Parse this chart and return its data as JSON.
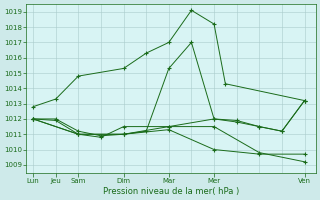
{
  "background_color": "#ceeaea",
  "plot_bg_color": "#d8f4f4",
  "grid_color": "#aacccc",
  "line_color": "#1a6b1a",
  "ylabel_text": "Pression niveau de la mer( hPa )",
  "ylim": [
    1008.5,
    1019.5
  ],
  "yticks": [
    1009,
    1010,
    1011,
    1012,
    1013,
    1014,
    1015,
    1016,
    1017,
    1018,
    1019
  ],
  "xtick_labels": [
    "Lun",
    "Jeu",
    "Sam",
    "Dim",
    "Mar",
    "Mer",
    "Ven"
  ],
  "xtick_positions": [
    0,
    1,
    2,
    4,
    6,
    8,
    12
  ],
  "xlim": [
    -0.3,
    12.5
  ],
  "lines": [
    {
      "x": [
        0,
        1,
        2,
        4,
        5,
        6,
        7,
        8,
        8.5,
        12
      ],
      "y": [
        1012.8,
        1013.3,
        1014.8,
        1015.3,
        1016.3,
        1017.0,
        1019.1,
        1018.2,
        1014.3,
        1013.2
      ]
    },
    {
      "x": [
        0,
        1,
        2,
        3,
        4,
        5,
        6,
        7,
        8,
        9,
        10,
        11,
        12
      ],
      "y": [
        1012.0,
        1012.0,
        1011.2,
        1010.9,
        1011.0,
        1011.2,
        1015.3,
        1017.0,
        1012.0,
        1011.9,
        1011.5,
        1011.2,
        1013.2
      ]
    },
    {
      "x": [
        0,
        1,
        2,
        3,
        4,
        6,
        8,
        9,
        10,
        11,
        12
      ],
      "y": [
        1012.0,
        1011.9,
        1011.0,
        1010.8,
        1011.5,
        1011.5,
        1012.0,
        1011.8,
        1011.5,
        1011.2,
        1013.2
      ]
    },
    {
      "x": [
        0,
        2,
        4,
        6,
        8,
        10,
        12
      ],
      "y": [
        1012.0,
        1011.0,
        1011.0,
        1011.5,
        1011.5,
        1009.8,
        1009.2
      ]
    },
    {
      "x": [
        0,
        2,
        4,
        6,
        8,
        10,
        12
      ],
      "y": [
        1012.0,
        1011.0,
        1011.0,
        1011.3,
        1010.0,
        1009.7,
        1009.7
      ]
    }
  ]
}
